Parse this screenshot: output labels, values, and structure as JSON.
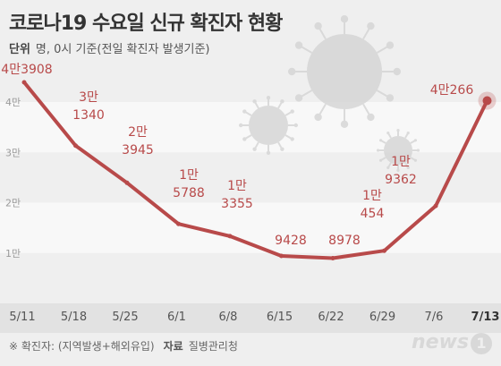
{
  "header": {
    "title": "코로나19 수요일 신규 확진자 현황",
    "unit_label": "단위",
    "unit_text": "명, 0시 기준(전일 확진자 발생기준)"
  },
  "footer": {
    "note": "※ 확진자: (지역발생+해외유입)",
    "source_label": "자료",
    "source": "질병관리청",
    "logo_text": "news",
    "logo_num": "1"
  },
  "colors": {
    "line": "#b84a4a",
    "label": "#b84a4a",
    "axis_text": "#555555",
    "highlight_band": "#ffffff",
    "decor_virus": "#d4d4d4"
  },
  "chart_data": {
    "type": "line",
    "title": "코로나19 수요일 신규 확진자 현황",
    "xlabel": "",
    "ylabel": "",
    "categories": [
      "5/11",
      "5/18",
      "5/25",
      "6/1",
      "6/8",
      "6/15",
      "6/22",
      "6/29",
      "7/6",
      "7/13"
    ],
    "values": [
      43908,
      31340,
      23945,
      15788,
      13355,
      9428,
      8978,
      10454,
      19362,
      40266
    ],
    "data_labels": [
      [
        "4만3908"
      ],
      [
        "3만",
        "1340"
      ],
      [
        "2만",
        "3945"
      ],
      [
        "1만",
        "5788"
      ],
      [
        "1만",
        "3355"
      ],
      [
        "9428"
      ],
      [
        "8978"
      ],
      [
        "1만",
        "454"
      ],
      [
        "1만",
        "9362"
      ],
      [
        "4만266"
      ]
    ],
    "y_ticks": [
      10000,
      20000,
      30000,
      40000
    ],
    "y_tick_labels": [
      "1만",
      "2만",
      "3만",
      "4만"
    ],
    "ylim": [
      0,
      45000
    ],
    "grid": false,
    "highlight_category": "7/13"
  }
}
